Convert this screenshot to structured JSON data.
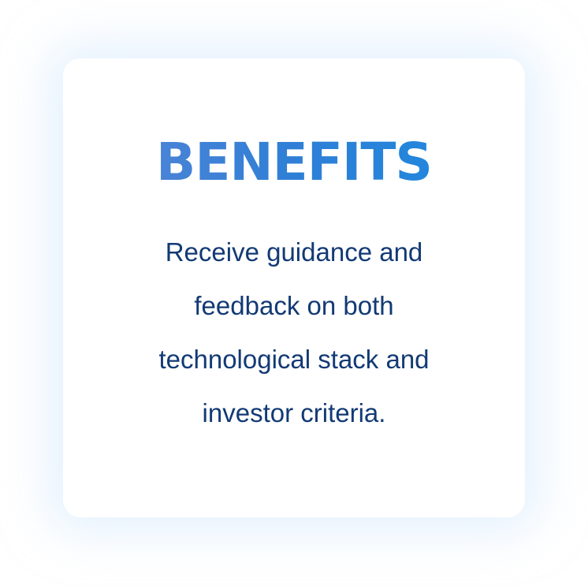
{
  "card": {
    "title": "BENEFITS",
    "description_lines": [
      "Receive guidance and",
      "feedback on both",
      "technological stack and",
      "investor criteria."
    ]
  },
  "colors": {
    "title_gradient_start": "#5b86d6",
    "title_gradient_end": "#1a8be0",
    "body_text": "#123a74",
    "card_glow": "#cde6fc"
  }
}
